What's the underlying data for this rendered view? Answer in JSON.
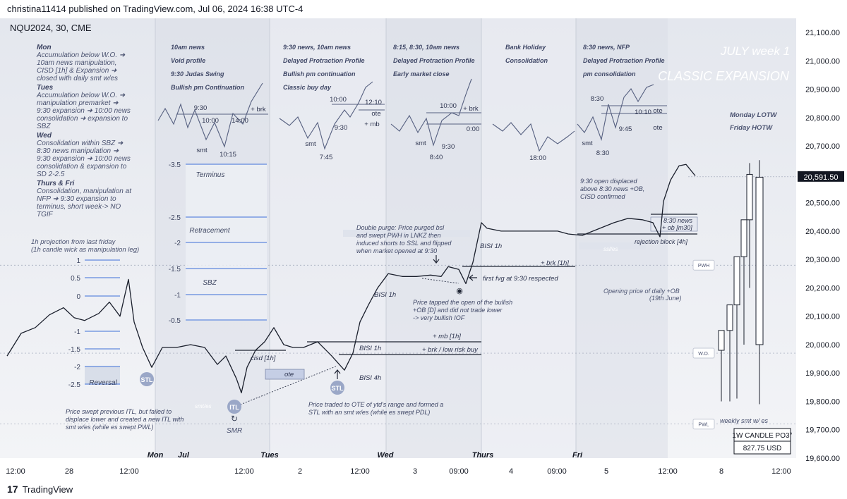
{
  "header": "christina11414 published on TradingView.com, Jul 06, 2024 16:38 UTC-4",
  "footer": {
    "logo": "17",
    "brand": "TradingView"
  },
  "chart_data": {
    "type": "candlestick",
    "symbol": "NQU2024, 30, CME",
    "ylim": [
      19600,
      21150
    ],
    "y_ticks": [
      "21,100.00",
      "21,000.00",
      "20,900.00",
      "20,800.00",
      "20,700.00",
      "20,600.00",
      "20,500.00",
      "20,400.00",
      "20,300.00",
      "20,200.00",
      "20,100.00",
      "20,000.00",
      "19,900.00",
      "19,800.00",
      "19,700.00",
      "19,600.00"
    ],
    "y_tick_values": [
      21100,
      21000,
      20900,
      20800,
      20700,
      20600,
      20500,
      20400,
      20300,
      20200,
      20100,
      20000,
      19900,
      19800,
      19700,
      19600
    ],
    "last_price": "20,591.50",
    "last_price_value": 20591.5,
    "x_ticks": [
      {
        "label": "12:00",
        "bold": false
      },
      {
        "label": "28",
        "bold": false
      },
      {
        "label": "12:00",
        "bold": false
      },
      {
        "label": "Mon",
        "bold": true
      },
      {
        "label": "Jul",
        "bold": true
      },
      {
        "label": "12:00",
        "bold": false
      },
      {
        "label": "Tues",
        "bold": true
      },
      {
        "label": "2",
        "bold": false
      },
      {
        "label": "12:00",
        "bold": false
      },
      {
        "label": "Wed",
        "bold": true
      },
      {
        "label": "3",
        "bold": false
      },
      {
        "label": "09:00",
        "bold": false
      },
      {
        "label": "Thurs",
        "bold": true
      },
      {
        "label": "4",
        "bold": false
      },
      {
        "label": "09:00",
        "bold": false
      },
      {
        "label": "Fri",
        "bold": true
      },
      {
        "label": "5",
        "bold": false
      },
      {
        "label": "12:00",
        "bold": false
      },
      {
        "label": "8",
        "bold": false
      },
      {
        "label": "12:00",
        "bold": false
      }
    ],
    "price_path": [
      [
        0,
        19960
      ],
      [
        20,
        20040
      ],
      [
        40,
        20060
      ],
      [
        60,
        20105
      ],
      [
        80,
        20130
      ],
      [
        95,
        20095
      ],
      [
        110,
        20085
      ],
      [
        130,
        20110
      ],
      [
        145,
        20150
      ],
      [
        160,
        20100
      ],
      [
        172,
        20230
      ],
      [
        180,
        20080
      ],
      [
        192,
        19990
      ],
      [
        205,
        19920
      ],
      [
        220,
        19990
      ],
      [
        240,
        19990
      ],
      [
        260,
        20000
      ],
      [
        280,
        19990
      ],
      [
        298,
        19930
      ],
      [
        310,
        19960
      ],
      [
        325,
        19880
      ],
      [
        332,
        19830
      ],
      [
        340,
        19920
      ],
      [
        352,
        19980
      ],
      [
        365,
        20010
      ],
      [
        378,
        20060
      ],
      [
        392,
        20000
      ],
      [
        405,
        19990
      ],
      [
        420,
        19990
      ],
      [
        440,
        20010
      ],
      [
        460,
        19960
      ],
      [
        478,
        19910
      ],
      [
        490,
        19970
      ],
      [
        500,
        20080
      ],
      [
        512,
        20140
      ],
      [
        525,
        20200
      ],
      [
        540,
        20250
      ],
      [
        560,
        20240
      ],
      [
        580,
        20240
      ],
      [
        600,
        20245
      ],
      [
        615,
        20240
      ],
      [
        625,
        20275
      ],
      [
        640,
        20265
      ],
      [
        650,
        20215
      ],
      [
        660,
        20290
      ],
      [
        672,
        20430
      ],
      [
        680,
        20410
      ],
      [
        700,
        20400
      ],
      [
        740,
        20400
      ],
      [
        780,
        20400
      ],
      [
        795,
        20390
      ],
      [
        815,
        20385
      ],
      [
        830,
        20400
      ],
      [
        860,
        20430
      ],
      [
        880,
        20445
      ],
      [
        900,
        20440
      ],
      [
        915,
        20430
      ],
      [
        925,
        20380
      ],
      [
        930,
        20505
      ],
      [
        940,
        20580
      ],
      [
        952,
        20630
      ],
      [
        962,
        20635
      ],
      [
        975,
        20595
      ]
    ],
    "weekly_candles": [
      {
        "o": 19980,
        "h": 20050,
        "l": 19800,
        "c": 20050
      },
      {
        "o": 20050,
        "h": 20140,
        "l": 19800,
        "c": 20140
      },
      {
        "o": 20140,
        "h": 20310,
        "l": 19810,
        "c": 20310
      },
      {
        "o": 20310,
        "h": 20440,
        "l": 20000,
        "c": 20440
      },
      {
        "o": 20440,
        "h": 20640,
        "l": 20200,
        "c": 20600
      },
      {
        "o": 20000,
        "h": 20650,
        "l": 19790,
        "c": 20590
      }
    ],
    "levels": [
      {
        "label": "PWH",
        "value": 20280
      },
      {
        "label": "W.O.",
        "value": 19970
      },
      {
        "label": "PWL",
        "value": 19720
      }
    ],
    "fib": {
      "labels": [
        "-3.5",
        "-2.5",
        "-2",
        "-1.5",
        "-1",
        "-0.5",
        "1",
        "0.5",
        "0",
        "-1",
        "-1.5",
        "-2",
        "-2.5"
      ],
      "zones": [
        "Terminus",
        "Retracement",
        "SBZ",
        "Reversal"
      ]
    },
    "day_notes": [
      {
        "title": "Mon",
        "lines": [
          "Accumulation below W.O. ➜",
          "10am news manipulation,",
          "CISD [1h] & Expansion ➜",
          "closed with daily smt w/es"
        ]
      },
      {
        "title": "Tues",
        "lines": [
          "Accumulation below W.O. ➜",
          "manipulation premarket ➜",
          "9:30 expansion ➜ 10:00 news",
          "consolidation ➜ expansion to",
          "SBZ"
        ]
      },
      {
        "title": "Wed",
        "lines": [
          "Consolidation within SBZ ➜",
          "8:30 news manipulation ➜",
          "9:30 expansion ➜ 10:00 news",
          "consolidation & expansion to",
          "SD 2-2.5"
        ]
      },
      {
        "title": "Thurs & Fri",
        "lines": [
          "Consolidation, manipulation at",
          "NFP ➜ 9:30 expansion to",
          "terminus, short week-> NO",
          "TGIF"
        ]
      }
    ],
    "panels": [
      {
        "lines": [
          "10am news",
          "Void profile",
          "9:30 Judas Swing",
          "Bullish pm Continuation"
        ],
        "marks": [
          "9:30",
          "10:00",
          "14:00",
          "10:15",
          "smt",
          "+ brk"
        ]
      },
      {
        "lines": [
          "9:30 news, 10am news",
          "Delayed Protraction Profile",
          "Bullish pm continuation",
          "Classic buy day"
        ],
        "marks": [
          "10:00",
          "12:10",
          "ote",
          "9:30",
          "+ mb",
          "7:45",
          "smt"
        ]
      },
      {
        "lines": [
          "8:15, 8:30, 10am news",
          "Delayed Protraction Profile",
          "Early market close"
        ],
        "marks": [
          "10:00",
          "+ brk",
          "0:00",
          "8:40",
          "9:30",
          "smt"
        ]
      },
      {
        "lines": [
          "Bank Holiday",
          "Consolidation"
        ],
        "marks": [
          "18:00"
        ]
      },
      {
        "lines": [
          "8:30 news, NFP",
          "Delayed Protraction Profile",
          "pm consolidation"
        ],
        "marks": [
          "8:30",
          "10:10",
          "ote",
          "9:45",
          "ote",
          "smt",
          "8:30"
        ]
      }
    ],
    "titles": [
      "JULY week 1",
      "CLASSIC EXPANSION"
    ],
    "weekly_labels": [
      "Monday LOTW",
      "Friday HOTW"
    ],
    "annotations": [
      "1h projection from last friday",
      "(1h candle wick as manipulation leg)",
      "Double purge: Price purged bsl",
      "and swept PWH in LNKZ then",
      "induced shorts to SSL and flipped",
      "when market opened at 9:30",
      "9:30 open displaced",
      "above 8:30 news +OB,",
      "CISD confirmed",
      "BISI 1h",
      "+ brk [1h]",
      "first fvg at 9:30 respected",
      "Opening price of daily +OB",
      "(19th June)",
      "Price tapped the open of the bullish",
      "+OB [D] and did not trade lower",
      "-> very bullish IOF",
      "BISI 1h",
      "+ mb [1h]",
      "+ brk / low risk buy",
      "BISI 1h",
      "BISI 4h",
      "cisd [1h]",
      "ote",
      "Price traded to OTE of ytd's range and formed a",
      "STL with an smt w/es (while es swept PDL)",
      "Price swept previous ITL, but failed to",
      "displace lower and created a new ITL with",
      "smt w/es (while es swept PWL)",
      "SMR",
      "8:30 news",
      "+ ob [m30]",
      "rejection block [4h]",
      "weekly smt w/ es",
      "STL",
      "ITL",
      "STL",
      "ssl/es",
      "smt/es"
    ],
    "weekly_box": {
      "line1": "1W CANDLE PO3°",
      "line2": "827.75 USD"
    }
  }
}
